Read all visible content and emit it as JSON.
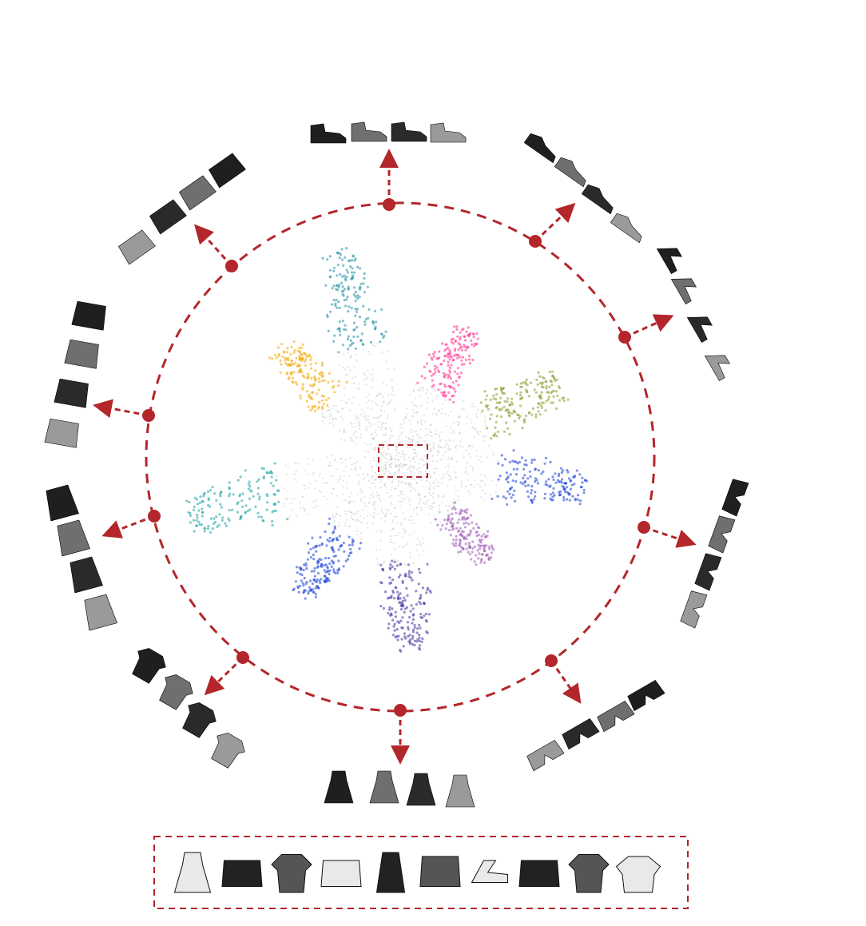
{
  "colors": {
    "accent": "#b3262b",
    "item_dark": "#1f1f1f",
    "item_mid": "#6f6f6f",
    "item_light": "#bdbdbd",
    "cluster_palette": [
      "#1a3fd6",
      "#1f8fa6",
      "#5fb3a6",
      "#f0a500",
      "#ff2f92",
      "#9b59b6",
      "#3a2fa0",
      "#8a9a2a"
    ]
  },
  "clusters": [
    {
      "id": "top",
      "icon": "ankle-boot-icon",
      "color": "#1f8fa6"
    },
    {
      "id": "top-right",
      "icon": "sneaker-icon",
      "color": "#ff2f92"
    },
    {
      "id": "right-upper",
      "icon": "sandal-icon",
      "color": "#8a9a2a"
    },
    {
      "id": "right",
      "icon": "trouser-icon",
      "color": "#1a3fd6"
    },
    {
      "id": "bottom-right",
      "icon": "trouser-icon",
      "color": "#9b59b6"
    },
    {
      "id": "bottom",
      "icon": "dress-icon",
      "color": "#3a2fa0"
    },
    {
      "id": "bottom-left",
      "icon": "shirt-icon",
      "color": "#5b8fc9"
    },
    {
      "id": "left-lower",
      "icon": "coat-icon",
      "color": "#4f6fd0"
    },
    {
      "id": "left-upper",
      "icon": "pullover-icon",
      "color": "#1aa3a0"
    },
    {
      "id": "top-left",
      "icon": "bag-icon",
      "color": "#f0a500"
    }
  ],
  "center_box": {
    "style": "dashed"
  },
  "legend_strip": {
    "items": [
      "dress-icon",
      "bag-icon",
      "shirt-icon",
      "bag-icon",
      "top-icon",
      "pullover-icon",
      "sandal-icon",
      "bag-icon",
      "shirt-icon",
      "tshirt-icon"
    ]
  }
}
